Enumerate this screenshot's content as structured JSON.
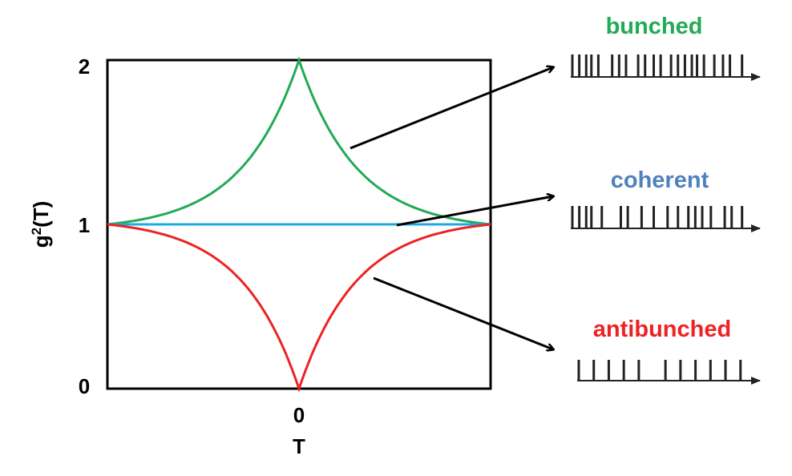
{
  "chart_data": {
    "type": "line",
    "title": "",
    "xlabel": "T",
    "ylabel": "g²(T)",
    "ylabel_base": "g",
    "ylabel_superscript": "2",
    "ylabel_suffix": "(T)",
    "x_ticks": [
      "0"
    ],
    "y_ticks": [
      "0",
      "1",
      "2"
    ],
    "xlim": [
      -1,
      1
    ],
    "ylim": [
      0,
      2
    ],
    "series": [
      {
        "name": "bunched",
        "color": "#22aa55",
        "center_value": 2,
        "edge_value": 1
      },
      {
        "name": "coherent",
        "color": "#20a8e0",
        "center_value": 1,
        "edge_value": 1
      },
      {
        "name": "antibunched",
        "color": "#ee2222",
        "center_value": 0,
        "edge_value": 1
      }
    ]
  },
  "labels": {
    "bunched": {
      "text": "bunched",
      "color": "#22aa55"
    },
    "coherent": {
      "text": "coherent",
      "color": "#4f81bd"
    },
    "antibunched": {
      "text": "antibunched",
      "color": "#ee2222"
    }
  },
  "photon_streams": {
    "bunched": [
      0.0,
      0.04,
      0.08,
      0.11,
      0.15,
      0.23,
      0.27,
      0.31,
      0.38,
      0.42,
      0.47,
      0.51,
      0.57,
      0.61,
      0.65,
      0.69,
      0.72,
      0.76,
      0.82,
      0.87,
      0.91,
      0.98
    ],
    "coherent": [
      0.0,
      0.04,
      0.08,
      0.11,
      0.17,
      0.28,
      0.32,
      0.4,
      0.47,
      0.55,
      0.61,
      0.67,
      0.71,
      0.75,
      0.8,
      0.88,
      0.92,
      0.98
    ],
    "antibunched": [
      0.0,
      0.09,
      0.18,
      0.27,
      0.36,
      0.52,
      0.61,
      0.7,
      0.79,
      0.88,
      0.97
    ]
  }
}
